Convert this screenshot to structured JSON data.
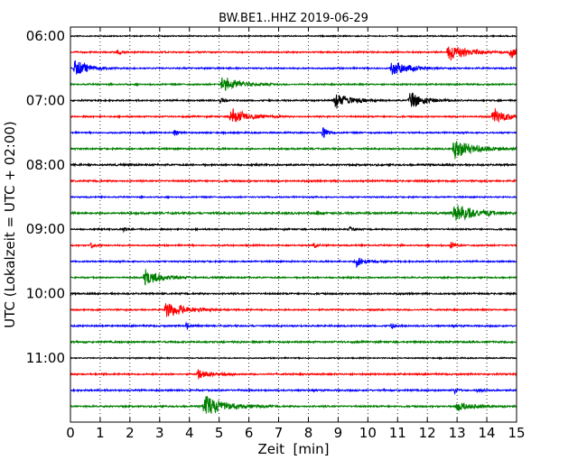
{
  "chart_data": {
    "type": "line",
    "title": "BW.BE1..HHZ 2019-06-29",
    "xlabel": "Zeit  [min]",
    "ylabel": "UTC (Lokalzeit = UTC + 02:00)",
    "xlim": [
      0,
      15
    ],
    "x_ticks": [
      0,
      1,
      2,
      3,
      4,
      5,
      6,
      7,
      8,
      9,
      10,
      11,
      12,
      13,
      14,
      15
    ],
    "y_tick_labels": [
      "06:00",
      "07:00",
      "08:00",
      "09:00",
      "10:00",
      "11:00"
    ],
    "y_tick_trace_index": [
      0,
      4,
      8,
      12,
      16,
      20
    ],
    "grid": "dotted vertical at each minute",
    "trace_interval_minutes": 15,
    "colors": [
      "#000000",
      "#ff0000",
      "#0000ff",
      "#007f00"
    ],
    "series": [
      {
        "start": "06:00",
        "color": "#000000",
        "noise": 0.7,
        "events": []
      },
      {
        "start": "06:15",
        "color": "#ff0000",
        "noise": 0.9,
        "events": [
          {
            "t": 1.6,
            "amp": 3
          },
          {
            "t": 12.7,
            "amp": 12,
            "dur": 0.6
          },
          {
            "t": 14.8,
            "amp": 8,
            "dur": 0.4
          }
        ]
      },
      {
        "start": "06:30",
        "color": "#0000ff",
        "noise": 0.9,
        "events": [
          {
            "t": 0.15,
            "amp": 11,
            "dur": 0.4
          },
          {
            "t": 10.8,
            "amp": 11,
            "dur": 0.5
          }
        ]
      },
      {
        "start": "06:45",
        "color": "#007f00",
        "noise": 0.9,
        "events": [
          {
            "t": 5.1,
            "amp": 10,
            "dur": 0.6
          }
        ]
      },
      {
        "start": "07:00",
        "color": "#000000",
        "noise": 0.9,
        "events": [
          {
            "t": 5.05,
            "amp": 4
          },
          {
            "t": 8.9,
            "amp": 10,
            "dur": 0.5
          },
          {
            "t": 11.4,
            "amp": 11,
            "dur": 0.5
          }
        ]
      },
      {
        "start": "07:15",
        "color": "#ff0000",
        "noise": 0.9,
        "events": [
          {
            "t": 5.4,
            "amp": 11,
            "dur": 0.5
          },
          {
            "t": 14.2,
            "amp": 10,
            "dur": 0.5
          }
        ]
      },
      {
        "start": "07:30",
        "color": "#0000ff",
        "noise": 0.9,
        "events": [
          {
            "t": 3.5,
            "amp": 4
          },
          {
            "t": 8.5,
            "amp": 8
          }
        ]
      },
      {
        "start": "07:45",
        "color": "#007f00",
        "noise": 1.0,
        "events": [
          {
            "t": 12.9,
            "amp": 13,
            "dur": 0.6
          }
        ]
      },
      {
        "start": "08:00",
        "color": "#000000",
        "noise": 1.1,
        "events": []
      },
      {
        "start": "08:15",
        "color": "#ff0000",
        "noise": 1.0,
        "events": []
      },
      {
        "start": "08:30",
        "color": "#0000ff",
        "noise": 0.8,
        "events": []
      },
      {
        "start": "08:45",
        "color": "#007f00",
        "noise": 1.2,
        "events": [
          {
            "t": 8.3,
            "amp": 3
          },
          {
            "t": 12.9,
            "amp": 12,
            "dur": 0.7
          }
        ]
      },
      {
        "start": "09:00",
        "color": "#000000",
        "noise": 0.9,
        "events": [
          {
            "t": 1.8,
            "amp": 3
          },
          {
            "t": 9.4,
            "amp": 3
          }
        ]
      },
      {
        "start": "09:15",
        "color": "#ff0000",
        "noise": 0.9,
        "events": [
          {
            "t": 0.7,
            "amp": 4
          },
          {
            "t": 8.2,
            "amp": 5
          },
          {
            "t": 12.8,
            "amp": 5
          }
        ]
      },
      {
        "start": "09:30",
        "color": "#0000ff",
        "noise": 0.9,
        "events": [
          {
            "t": 9.6,
            "amp": 7,
            "dur": 0.3
          }
        ]
      },
      {
        "start": "09:45",
        "color": "#007f00",
        "noise": 0.9,
        "events": [
          {
            "t": 2.5,
            "amp": 11,
            "dur": 0.5
          }
        ]
      },
      {
        "start": "10:00",
        "color": "#000000",
        "noise": 1.0,
        "events": []
      },
      {
        "start": "10:15",
        "color": "#ff0000",
        "noise": 0.9,
        "events": [
          {
            "t": 3.2,
            "amp": 11,
            "dur": 0.6
          }
        ]
      },
      {
        "start": "10:30",
        "color": "#0000ff",
        "noise": 1.0,
        "events": [
          {
            "t": 3.9,
            "amp": 5
          },
          {
            "t": 10.8,
            "amp": 3
          }
        ]
      },
      {
        "start": "10:45",
        "color": "#007f00",
        "noise": 1.1,
        "events": []
      },
      {
        "start": "11:00",
        "color": "#000000",
        "noise": 0.7,
        "events": []
      },
      {
        "start": "11:15",
        "color": "#ff0000",
        "noise": 1.0,
        "events": [
          {
            "t": 4.3,
            "amp": 6,
            "dur": 0.4
          }
        ]
      },
      {
        "start": "11:30",
        "color": "#0000ff",
        "noise": 1.0,
        "events": [
          {
            "t": 12.9,
            "amp": 5
          },
          {
            "t": 13.7,
            "amp": 3
          }
        ]
      },
      {
        "start": "11:45",
        "color": "#007f00",
        "noise": 1.0,
        "events": [
          {
            "t": 4.5,
            "amp": 13,
            "dur": 0.7
          },
          {
            "t": 13.0,
            "amp": 6,
            "dur": 0.5
          }
        ]
      }
    ]
  }
}
